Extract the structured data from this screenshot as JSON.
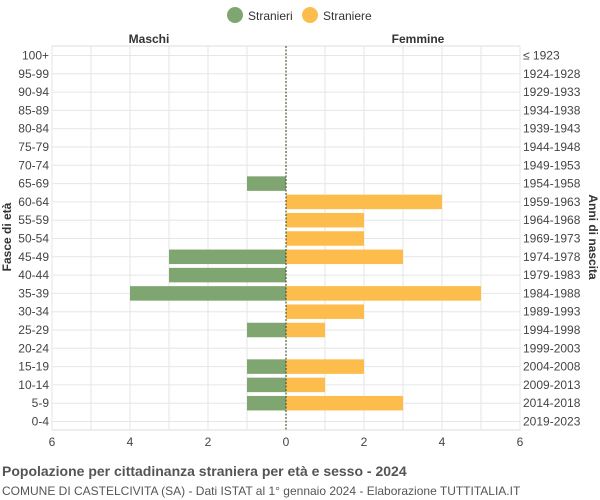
{
  "chart_data": {
    "type": "bar",
    "orientation": "horizontal-pyramid",
    "title": "Popolazione per cittadinanza straniera per età e sesso - 2024",
    "subtitle": "COMUNE DI CASTELCIVITA (SA) - Dati ISTAT al 1° gennaio 2024 - Elaborazione TUTTITALIA.IT",
    "ylabel": "Fasce di età",
    "y2label": "Anni di nascita",
    "left_header": "Maschi",
    "right_header": "Femmine",
    "xlim": [
      -6,
      6
    ],
    "x_ticks": [
      "6",
      "4",
      "2",
      "0",
      "2",
      "4",
      "6"
    ],
    "grid": true,
    "legend_position": "top-center",
    "categories": [
      "100+",
      "95-99",
      "90-94",
      "85-89",
      "80-84",
      "75-79",
      "70-74",
      "65-69",
      "60-64",
      "55-59",
      "50-54",
      "45-49",
      "40-44",
      "35-39",
      "30-34",
      "25-29",
      "20-24",
      "15-19",
      "10-14",
      "5-9",
      "0-4"
    ],
    "birth_years": [
      "≤ 1923",
      "1924-1928",
      "1929-1933",
      "1934-1938",
      "1939-1943",
      "1944-1948",
      "1949-1953",
      "1954-1958",
      "1959-1963",
      "1964-1968",
      "1969-1973",
      "1974-1978",
      "1979-1983",
      "1984-1988",
      "1989-1993",
      "1994-1998",
      "1999-2003",
      "2004-2008",
      "2009-2013",
      "2014-2018",
      "2019-2023"
    ],
    "series": [
      {
        "name": "Stranieri",
        "color": "#7fa571",
        "values": [
          0,
          0,
          0,
          0,
          0,
          0,
          0,
          1,
          0,
          0,
          0,
          3,
          3,
          4,
          0,
          1,
          0,
          1,
          1,
          1,
          0
        ]
      },
      {
        "name": "Straniere",
        "color": "#fcbd4c",
        "values": [
          0,
          0,
          0,
          0,
          0,
          0,
          0,
          0,
          4,
          2,
          2,
          3,
          0,
          5,
          2,
          1,
          0,
          2,
          1,
          3,
          0
        ]
      }
    ]
  }
}
